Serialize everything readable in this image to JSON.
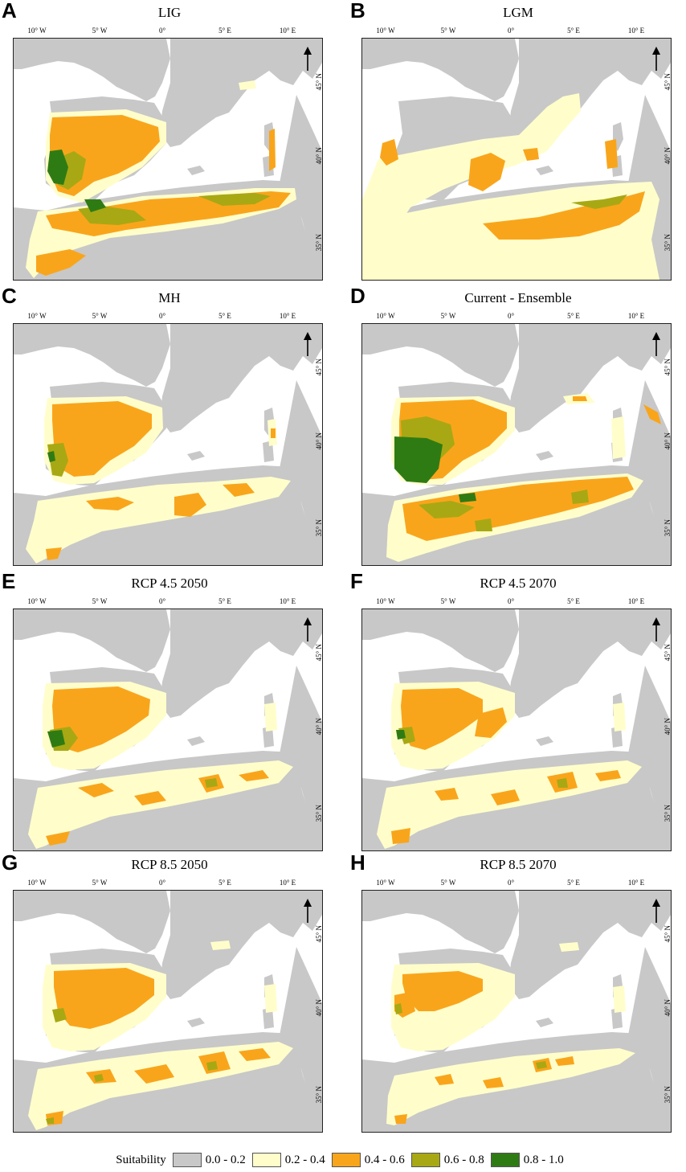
{
  "colors": {
    "land": "#c8c8c8",
    "sea": "#ffffff",
    "s02_04": "#fffecb",
    "s04_06": "#f9a51b",
    "s06_08": "#a8a814",
    "s08_10": "#2f7b13"
  },
  "lon_labels": [
    "10° W",
    "5° W",
    "0°",
    "5° E",
    "10° E"
  ],
  "lat_labels": [
    "45° N",
    "40° N",
    "35° N"
  ],
  "panels": [
    {
      "letter": "A",
      "title": "LIG"
    },
    {
      "letter": "B",
      "title": "LGM"
    },
    {
      "letter": "C",
      "title": "MH"
    },
    {
      "letter": "D",
      "title": "Current - Ensemble"
    },
    {
      "letter": "E",
      "title": "RCP 4.5 2050"
    },
    {
      "letter": "F",
      "title": "RCP 4.5 2070"
    },
    {
      "letter": "G",
      "title": "RCP 8.5 2050"
    },
    {
      "letter": "H",
      "title": "RCP 8.5 2070"
    }
  ],
  "north_arrow": "north-arrow-icon",
  "legend": {
    "title": "Suitability",
    "items": [
      {
        "label": "0.0 - 0.2",
        "color": "#c8c8c8"
      },
      {
        "label": "0.2 - 0.4",
        "color": "#fffecb"
      },
      {
        "label": "0.4 - 0.6",
        "color": "#f9a51b"
      },
      {
        "label": "0.6 - 0.8",
        "color": "#a8a814"
      },
      {
        "label": "0.8 - 1.0",
        "color": "#2f7b13"
      }
    ]
  }
}
